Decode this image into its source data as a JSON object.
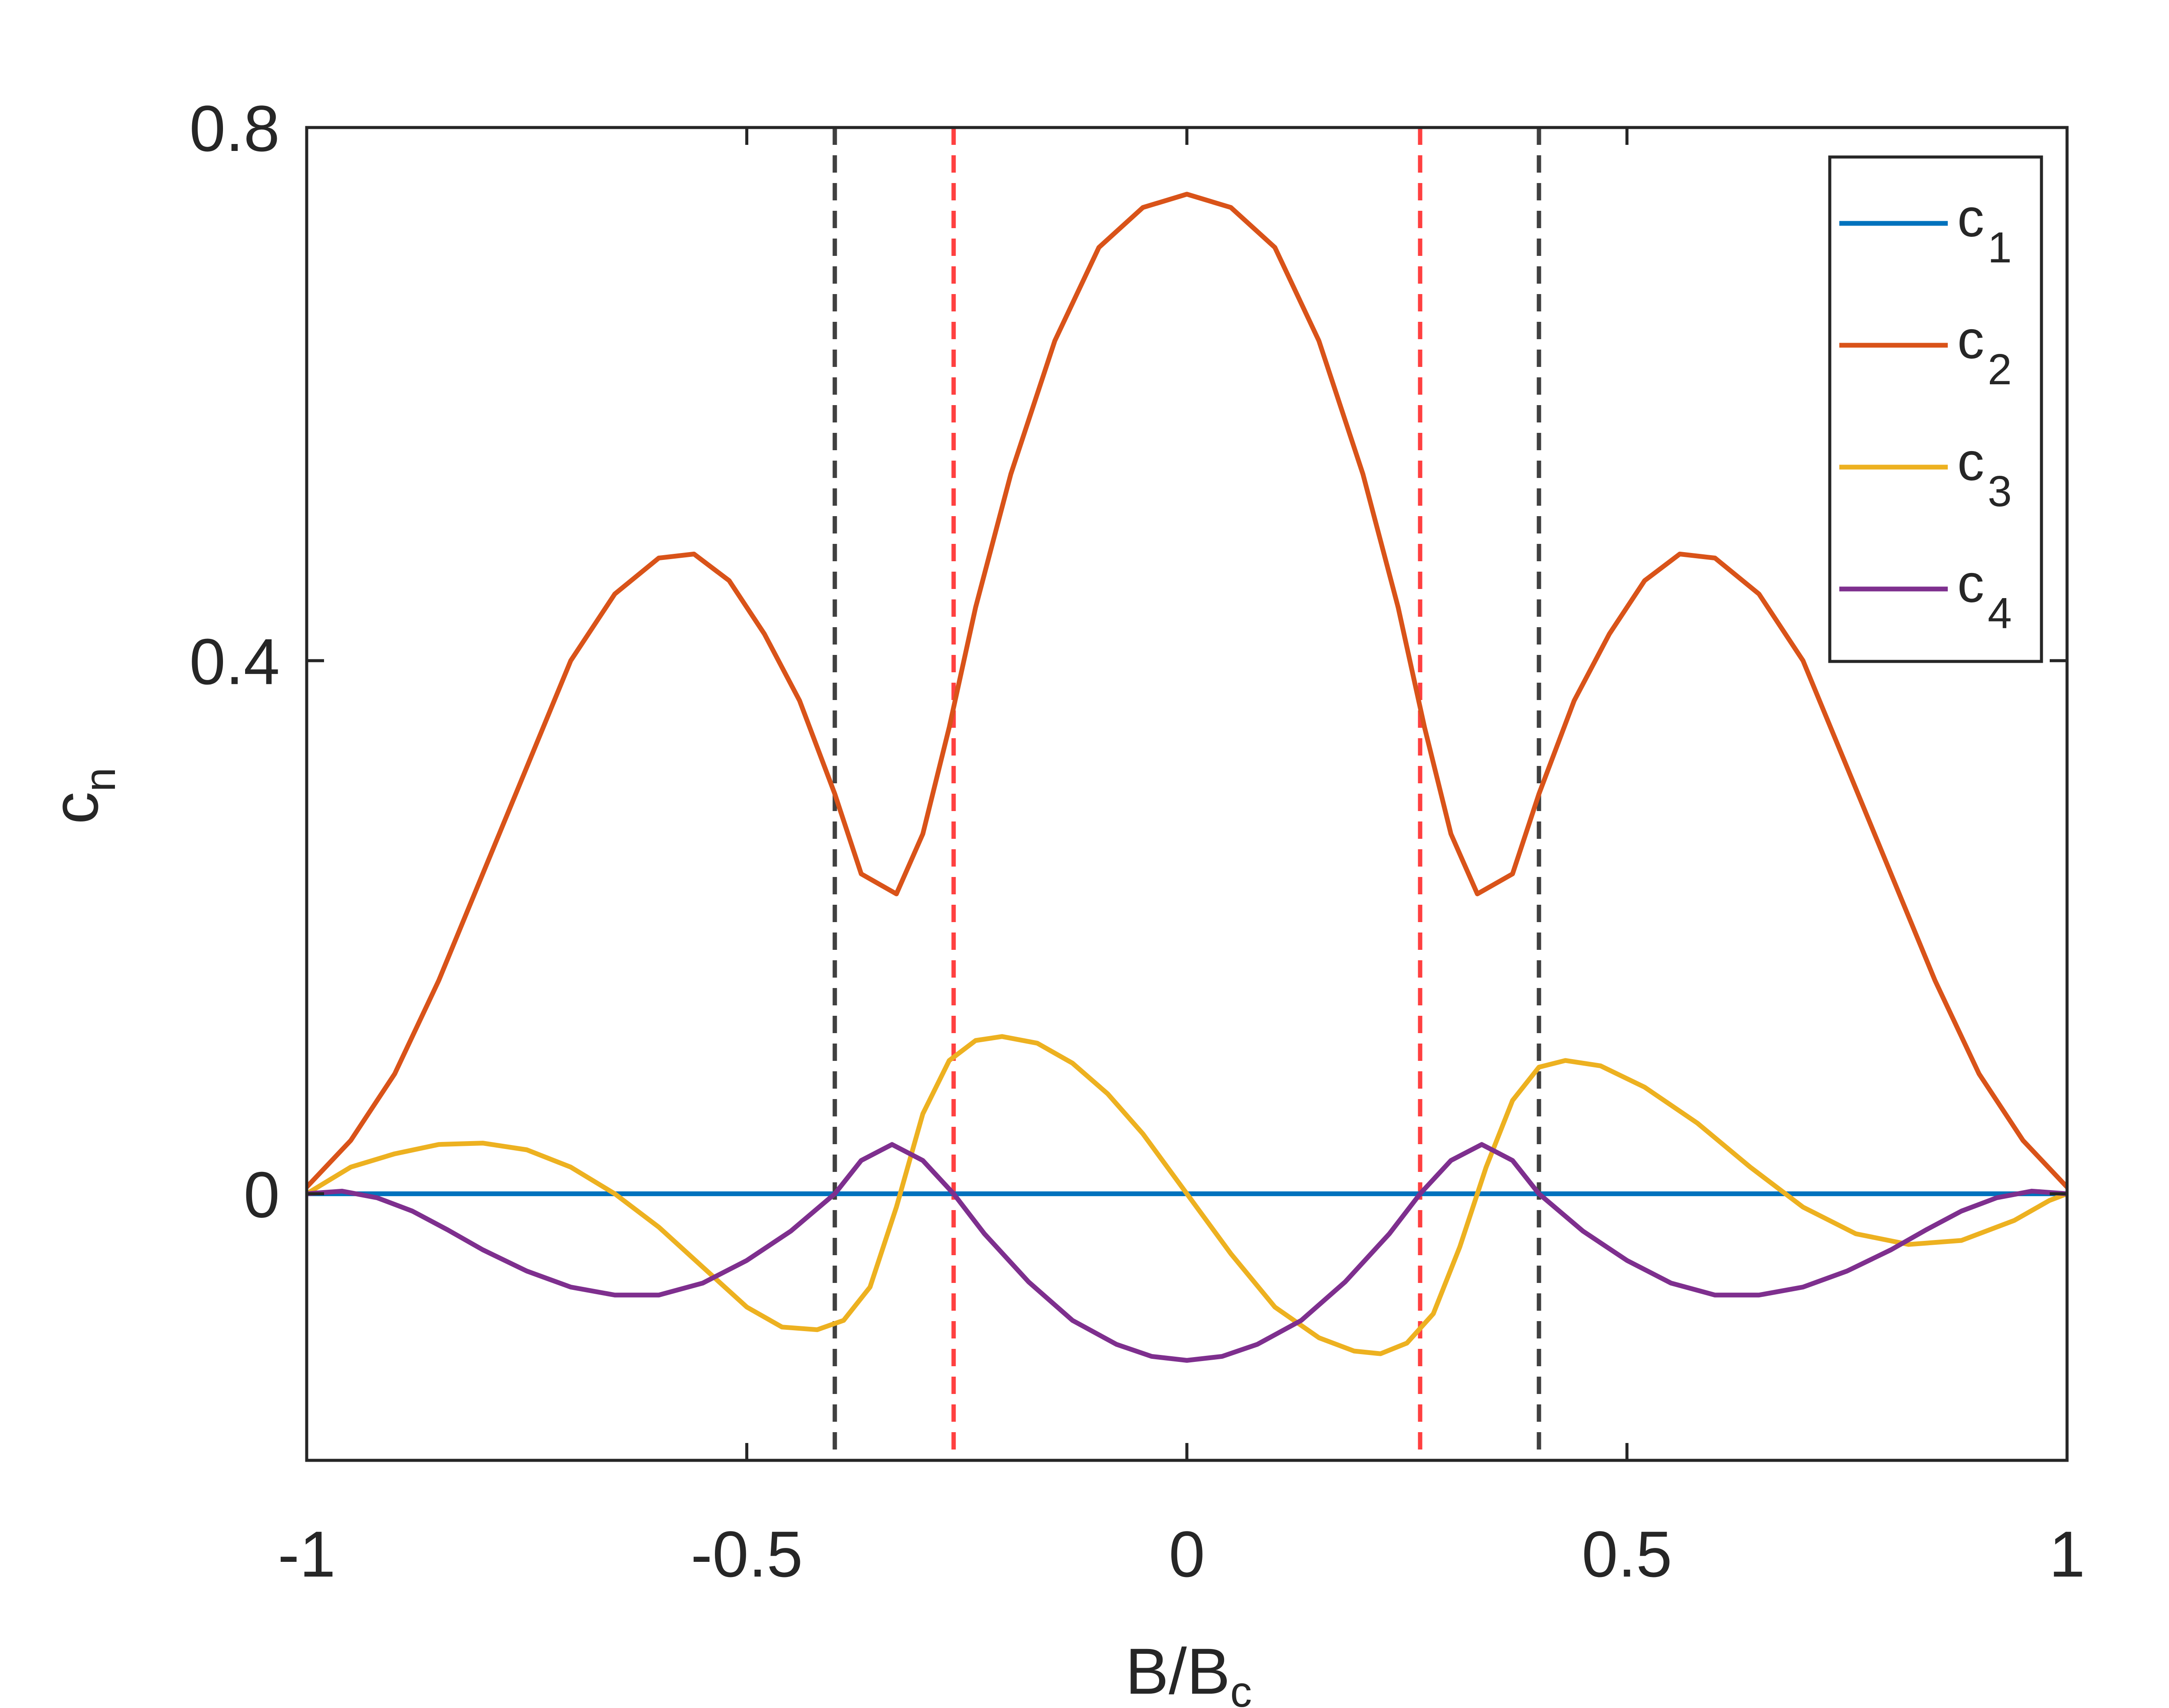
{
  "chart_data": {
    "type": "line",
    "xlabel": "B/B",
    "xlabel_sub": "c",
    "ylabel": "c",
    "ylabel_sub": "n",
    "xlim": [
      -1,
      1
    ],
    "ylim": [
      -0.2,
      0.8
    ],
    "xticks": [
      -1,
      -0.5,
      0,
      0.5,
      1
    ],
    "xtick_labels": [
      "-1",
      "-0.5",
      "0",
      "0.5",
      "1"
    ],
    "yticks": [
      0,
      0.4,
      0.8
    ],
    "ytick_labels": [
      "0",
      "0.4",
      "0.8"
    ],
    "grid": false,
    "legend_position": "top-right",
    "vertical_lines": [
      {
        "x": -0.4,
        "color": "#404040",
        "style": "dashed"
      },
      {
        "x": -0.265,
        "color": "#ff4040",
        "style": "dashed"
      },
      {
        "x": 0.265,
        "color": "#ff4040",
        "style": "dashed"
      },
      {
        "x": 0.4,
        "color": "#404040",
        "style": "dashed"
      }
    ],
    "series": [
      {
        "name": "c",
        "sub": "1",
        "color": "#0072BD",
        "x": [
          -1,
          1
        ],
        "y": [
          0,
          0
        ]
      },
      {
        "name": "c",
        "sub": "2",
        "color": "#D95319",
        "x": [
          -1,
          -0.95,
          -0.9,
          -0.85,
          -0.8,
          -0.75,
          -0.7,
          -0.65,
          -0.6,
          -0.56,
          -0.52,
          -0.48,
          -0.44,
          -0.4,
          -0.37,
          -0.33,
          -0.3,
          -0.27,
          -0.24,
          -0.2,
          -0.15,
          -0.1,
          -0.05,
          0,
          0.05,
          0.1,
          0.15,
          0.2,
          0.24,
          0.27,
          0.3,
          0.33,
          0.37,
          0.4,
          0.44,
          0.48,
          0.52,
          0.56,
          0.6,
          0.65,
          0.7,
          0.75,
          0.8,
          0.85,
          0.9,
          0.95,
          1
        ],
        "y": [
          0.005,
          0.04,
          0.09,
          0.16,
          0.24,
          0.32,
          0.4,
          0.45,
          0.477,
          0.48,
          0.46,
          0.42,
          0.37,
          0.3,
          0.24,
          0.225,
          0.27,
          0.35,
          0.44,
          0.54,
          0.64,
          0.71,
          0.74,
          0.75,
          0.74,
          0.71,
          0.64,
          0.54,
          0.44,
          0.35,
          0.27,
          0.225,
          0.24,
          0.3,
          0.37,
          0.42,
          0.46,
          0.48,
          0.477,
          0.45,
          0.4,
          0.32,
          0.24,
          0.16,
          0.09,
          0.04,
          0.005
        ]
      },
      {
        "name": "c",
        "sub": "3",
        "color": "#EDB120",
        "x": [
          -1,
          -0.95,
          -0.9,
          -0.85,
          -0.8,
          -0.75,
          -0.7,
          -0.65,
          -0.6,
          -0.55,
          -0.5,
          -0.46,
          -0.42,
          -0.39,
          -0.36,
          -0.33,
          -0.3,
          -0.27,
          -0.24,
          -0.21,
          -0.17,
          -0.13,
          -0.09,
          -0.05,
          0,
          0.05,
          0.1,
          0.15,
          0.19,
          0.22,
          0.25,
          0.28,
          0.31,
          0.34,
          0.37,
          0.4,
          0.43,
          0.47,
          0.52,
          0.58,
          0.64,
          0.7,
          0.76,
          0.82,
          0.88,
          0.94,
          0.98,
          1
        ],
        "y": [
          0,
          0.02,
          0.03,
          0.037,
          0.038,
          0.033,
          0.02,
          0,
          -0.025,
          -0.055,
          -0.085,
          -0.1,
          -0.102,
          -0.095,
          -0.07,
          -0.01,
          0.06,
          0.1,
          0.115,
          0.118,
          0.113,
          0.098,
          0.075,
          0.045,
          0,
          -0.045,
          -0.085,
          -0.108,
          -0.118,
          -0.12,
          -0.112,
          -0.09,
          -0.04,
          0.02,
          0.07,
          0.095,
          0.1,
          0.096,
          0.08,
          0.053,
          0.02,
          -0.01,
          -0.03,
          -0.038,
          -0.035,
          -0.02,
          -0.005,
          0
        ]
      },
      {
        "name": "c",
        "sub": "4",
        "color": "#7E2F8E",
        "x": [
          -1,
          -0.96,
          -0.92,
          -0.88,
          -0.84,
          -0.8,
          -0.75,
          -0.7,
          -0.65,
          -0.6,
          -0.55,
          -0.5,
          -0.45,
          -0.4,
          -0.37,
          -0.335,
          -0.3,
          -0.265,
          -0.23,
          -0.18,
          -0.13,
          -0.08,
          -0.04,
          0,
          0.04,
          0.08,
          0.13,
          0.18,
          0.23,
          0.265,
          0.3,
          0.335,
          0.37,
          0.4,
          0.45,
          0.5,
          0.55,
          0.6,
          0.65,
          0.7,
          0.75,
          0.8,
          0.84,
          0.88,
          0.92,
          0.96,
          1
        ],
        "y": [
          0,
          0.002,
          -0.003,
          -0.013,
          -0.027,
          -0.042,
          -0.058,
          -0.07,
          -0.076,
          -0.076,
          -0.067,
          -0.05,
          -0.028,
          0,
          0.025,
          0.037,
          0.025,
          0,
          -0.03,
          -0.066,
          -0.095,
          -0.113,
          -0.122,
          -0.125,
          -0.122,
          -0.113,
          -0.095,
          -0.066,
          -0.03,
          0,
          0.025,
          0.037,
          0.025,
          0,
          -0.028,
          -0.05,
          -0.067,
          -0.076,
          -0.076,
          -0.07,
          -0.058,
          -0.042,
          -0.027,
          -0.013,
          -0.003,
          0.002,
          0
        ]
      }
    ]
  }
}
